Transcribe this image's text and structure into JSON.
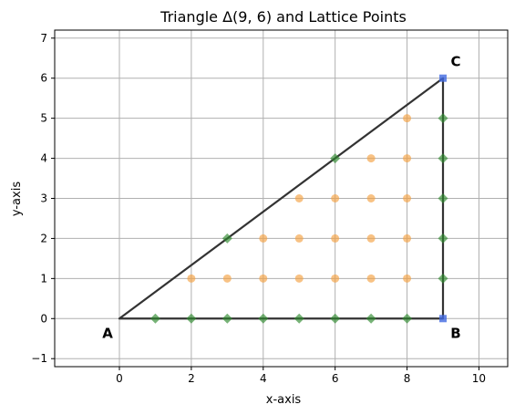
{
  "chart_data": {
    "type": "scatter",
    "title": "Triangle Δ(9, 6) and Lattice Points",
    "xlabel": "x-axis",
    "ylabel": "y-axis",
    "xlim": [
      -1.8,
      10.8
    ],
    "ylim": [
      -1.2,
      7.2
    ],
    "xticks": [
      0,
      2,
      4,
      6,
      8,
      10
    ],
    "yticks": [
      -1,
      0,
      1,
      2,
      3,
      4,
      5,
      6,
      7
    ],
    "grid": true,
    "triangle": {
      "vertices": [
        {
          "label": "A",
          "x": 0,
          "y": 0
        },
        {
          "label": "B",
          "x": 9,
          "y": 0
        },
        {
          "label": "C",
          "x": 9,
          "y": 6
        }
      ],
      "edge_color": "#333333"
    },
    "series": [
      {
        "role": "interior",
        "marker": "circle",
        "color": "#f5a142",
        "points": [
          [
            2,
            1
          ],
          [
            3,
            1
          ],
          [
            4,
            1
          ],
          [
            5,
            1
          ],
          [
            6,
            1
          ],
          [
            7,
            1
          ],
          [
            8,
            1
          ],
          [
            4,
            2
          ],
          [
            5,
            2
          ],
          [
            6,
            2
          ],
          [
            7,
            2
          ],
          [
            8,
            2
          ],
          [
            5,
            3
          ],
          [
            6,
            3
          ],
          [
            7,
            3
          ],
          [
            8,
            3
          ],
          [
            7,
            4
          ],
          [
            8,
            4
          ],
          [
            8,
            5
          ]
        ]
      },
      {
        "role": "boundary",
        "marker": "diamond",
        "color": "#2e8b2e",
        "points": [
          [
            1,
            0
          ],
          [
            2,
            0
          ],
          [
            3,
            0
          ],
          [
            4,
            0
          ],
          [
            5,
            0
          ],
          [
            6,
            0
          ],
          [
            7,
            0
          ],
          [
            8,
            0
          ],
          [
            9,
            1
          ],
          [
            9,
            2
          ],
          [
            9,
            3
          ],
          [
            9,
            4
          ],
          [
            9,
            5
          ],
          [
            3,
            2
          ],
          [
            6,
            4
          ]
        ]
      },
      {
        "role": "vertices",
        "marker": "square",
        "color": "#4169e1",
        "points": [
          [
            9,
            0
          ],
          [
            9,
            6
          ]
        ]
      }
    ]
  }
}
